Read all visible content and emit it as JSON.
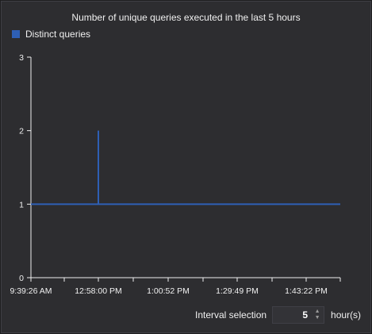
{
  "chart_data": {
    "type": "line",
    "title": "Number of unique queries executed in the last 5 hours",
    "series": [
      {
        "name": "Distinct queries",
        "color": "#2e5fb5",
        "points": [
          [
            "9:39:26 AM",
            1
          ],
          [
            "12:58:00 PM",
            1
          ],
          [
            "12:58:00 PM",
            2
          ],
          [
            "12:58:00 PM",
            1
          ],
          [
            "end",
            1
          ]
        ]
      }
    ],
    "x_tick_labels": [
      "9:39:26 AM",
      "12:58:00 PM",
      "1:00:52 PM",
      "1:29:49 PM",
      "1:43:22 PM"
    ],
    "y_ticks": [
      0,
      1,
      2,
      3
    ],
    "ylim": [
      0,
      3
    ],
    "grid": false,
    "legend_position": "top-left"
  },
  "controls": {
    "interval_label": "Interval selection",
    "interval_value": "5",
    "interval_unit": "hour(s)"
  },
  "colors": {
    "background": "#2d2d30",
    "axis": "#f0f0f0",
    "text": "#f0f0f0",
    "series": "#2e5fb5"
  },
  "icons": {
    "stepper_up": "caret-up-icon",
    "stepper_down": "caret-down-icon"
  }
}
